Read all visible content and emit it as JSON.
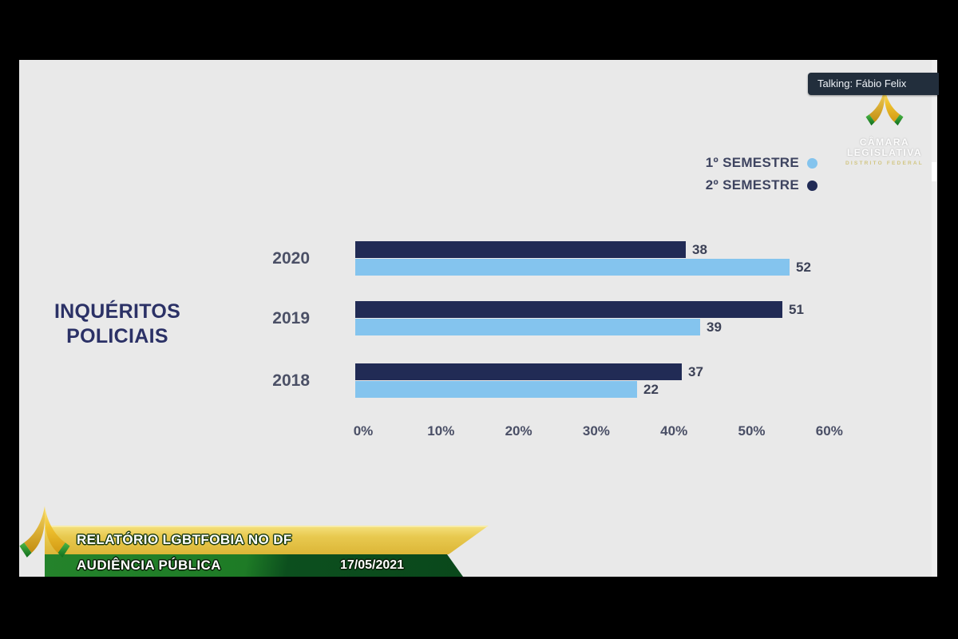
{
  "meeting": {
    "talking_label": "Talking: Fábio Felix"
  },
  "watermark": {
    "org_line1": "CÂMARA",
    "org_line2": "LEGISLATIVA",
    "org_line3": "DISTRITO FEDERAL"
  },
  "chart_data": {
    "type": "bar",
    "orientation": "horizontal",
    "title": "INQUÉRITOS POLICIAIS",
    "categories": [
      "2020",
      "2019",
      "2018"
    ],
    "series": [
      {
        "name": "1º SEMESTRE",
        "color": "#84c4ee",
        "values": [
          52,
          39,
          22
        ]
      },
      {
        "name": "2º SEMESTRE",
        "color": "#212b55",
        "values": [
          38,
          51,
          37
        ]
      }
    ],
    "bar_row_order": [
      "2º SEMESTRE",
      "1º SEMESTRE"
    ],
    "x_ticks": [
      "0%",
      "10%",
      "20%",
      "30%",
      "40%",
      "50%",
      "60%"
    ],
    "xlim": [
      0,
      60
    ],
    "grid": false,
    "legend_position": "top-right",
    "value_labels_shown": true,
    "display_end_pct": {
      "1º SEMESTRE": [
        54.9,
        43.6,
        35.6
      ],
      "2º SEMESTRE": [
        41.7,
        53.9,
        41.2
      ]
    }
  },
  "banner": {
    "title": "RELATÓRIO LGBTFOBIA NO DF",
    "subtitle": "AUDIÊNCIA PÚBLICA",
    "date": "17/05/2021"
  },
  "colors": {
    "page_bg": "#000000",
    "slide_bg": "#e9e9e9",
    "bar_dark": "#212b55",
    "bar_light": "#84c4ee",
    "title_text": "#2b3166",
    "chart_text": "#4b5066",
    "talking_bar_bg": "#222e3c",
    "banner_yellow": "#e7c84e",
    "banner_green": "#1e7b26",
    "banner_green_dark": "#0a481b",
    "logo_gold": "#efc12e",
    "logo_green": "#2f9e36"
  }
}
